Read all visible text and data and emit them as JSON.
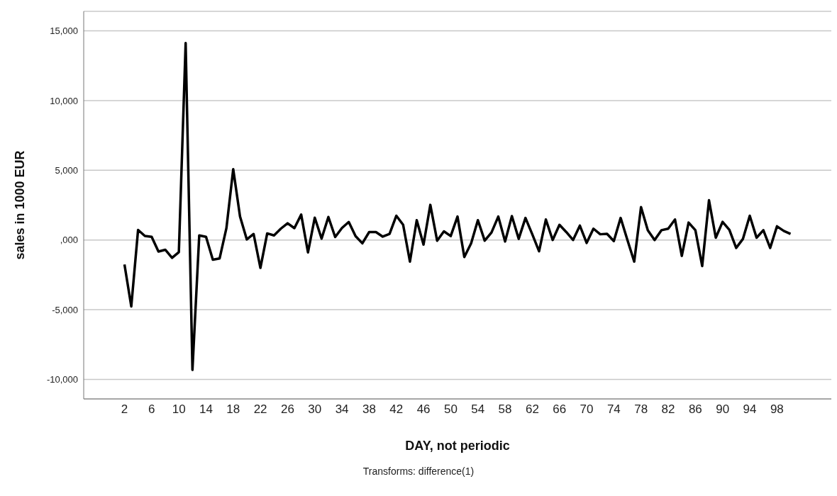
{
  "chart_data": {
    "type": "line",
    "xlabel": "DAY, not periodic",
    "ylabel": "sales in 1000 EUR",
    "annotations": [
      "Transforms: difference(1)"
    ],
    "x": [
      2,
      3,
      4,
      5,
      6,
      7,
      8,
      9,
      10,
      11,
      12,
      13,
      14,
      15,
      16,
      17,
      18,
      19,
      20,
      21,
      22,
      23,
      24,
      25,
      26,
      27,
      28,
      29,
      30,
      31,
      32,
      33,
      34,
      35,
      36,
      37,
      38,
      39,
      40,
      41,
      42,
      43,
      44,
      45,
      46,
      47,
      48,
      49,
      50,
      51,
      52,
      53,
      54,
      55,
      56,
      57,
      58,
      59,
      60,
      61,
      62,
      63,
      64,
      65,
      66,
      67,
      68,
      69,
      70,
      71,
      72,
      73,
      74,
      75,
      76,
      77,
      78,
      79,
      80,
      81,
      82,
      83,
      84,
      85,
      86,
      87,
      88,
      89,
      90,
      91,
      92,
      93,
      94,
      95,
      96,
      97,
      98,
      99,
      100
    ],
    "series": [
      {
        "color": "#000000",
        "values": [
          -1760,
          -4770,
          720,
          290,
          230,
          -830,
          -700,
          -1280,
          -870,
          14130,
          -9320,
          330,
          230,
          -1410,
          -1320,
          850,
          5080,
          1690,
          40,
          430,
          -2000,
          470,
          330,
          810,
          1200,
          850,
          1820,
          -890,
          1600,
          100,
          1650,
          210,
          860,
          1290,
          280,
          -240,
          570,
          570,
          240,
          440,
          1740,
          1090,
          -1550,
          1420,
          -330,
          2520,
          -50,
          620,
          280,
          1680,
          -1220,
          -240,
          1420,
          -50,
          540,
          1680,
          -110,
          1710,
          80,
          1580,
          410,
          -810,
          1470,
          0,
          1090,
          570,
          0,
          1030,
          -210,
          810,
          410,
          440,
          -80,
          1580,
          0,
          -1550,
          2360,
          700,
          0,
          700,
          810,
          1470,
          -1140,
          1250,
          700,
          -1870,
          2850,
          160,
          1300,
          730,
          -570,
          80,
          1740,
          160,
          700,
          -570,
          980,
          650,
          440
        ]
      }
    ],
    "xlim": [
      -4,
      106
    ],
    "xticks": [
      2,
      6,
      10,
      14,
      18,
      22,
      26,
      30,
      34,
      38,
      42,
      46,
      50,
      54,
      58,
      62,
      66,
      70,
      74,
      78,
      82,
      86,
      90,
      94,
      98
    ],
    "ylim": [
      -11400,
      16400
    ],
    "yticks": [
      {
        "value": -10000,
        "label": "-10,000"
      },
      {
        "value": -5000,
        "label": "-5,000"
      },
      {
        "value": 0,
        "label": ",000"
      },
      {
        "value": 5000,
        "label": "5,000"
      },
      {
        "value": 10000,
        "label": "10,000"
      },
      {
        "value": 15000,
        "label": "15,000"
      }
    ],
    "grid": "y",
    "legend": false,
    "marker": "none",
    "line_style": "solid"
  }
}
